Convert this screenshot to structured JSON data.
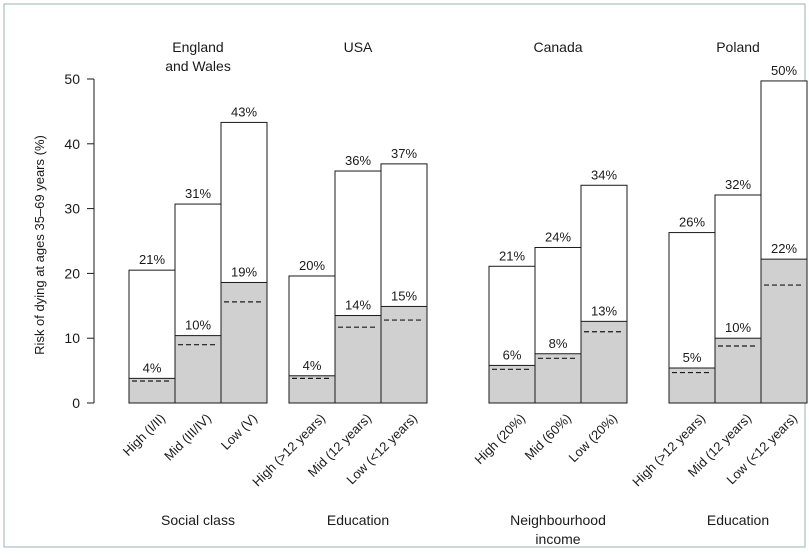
{
  "chart_data": {
    "type": "bar",
    "ylabel": "Risk of dying at ages 35–69 years (%)",
    "ylim": [
      0,
      50
    ],
    "yticks": [
      0,
      10,
      20,
      30,
      40,
      50
    ],
    "grid": false,
    "colors": {
      "frame": "#99b3b3",
      "outer_bar": "#ffffff",
      "inner_bar": "#d0d0d0",
      "stroke": "#1a1a1a"
    },
    "groups": [
      {
        "title_lines": [
          "England",
          "and Wales"
        ],
        "footer_lines": [
          "Social class"
        ],
        "bars": [
          {
            "category": "High (I/II)",
            "total": 20.5,
            "total_label": "21%",
            "inner": 3.8,
            "inner_label": "4%",
            "dashed": 3.4
          },
          {
            "category": "Mid (III/IV)",
            "total": 30.7,
            "total_label": "31%",
            "inner": 10.4,
            "inner_label": "10%",
            "dashed": 9.0
          },
          {
            "category": "Low (V)",
            "total": 43.3,
            "total_label": "43%",
            "inner": 18.6,
            "inner_label": "19%",
            "dashed": 15.6
          }
        ]
      },
      {
        "title_lines": [
          "USA"
        ],
        "footer_lines": [
          "Education"
        ],
        "bars": [
          {
            "category": "High (>12 years)",
            "total": 19.6,
            "total_label": "20%",
            "inner": 4.2,
            "inner_label": "4%",
            "dashed": 3.8
          },
          {
            "category": "Mid (12 years)",
            "total": 35.8,
            "total_label": "36%",
            "inner": 13.5,
            "inner_label": "14%",
            "dashed": 11.7
          },
          {
            "category": "Low (<12 years)",
            "total": 36.9,
            "total_label": "37%",
            "inner": 14.9,
            "inner_label": "15%",
            "dashed": 12.8
          }
        ]
      },
      {
        "title_lines": [
          "Canada"
        ],
        "footer_lines": [
          "Neighbourhood",
          "income"
        ],
        "bars": [
          {
            "category": "High (20%)",
            "total": 21.1,
            "total_label": "21%",
            "inner": 5.8,
            "inner_label": "6%",
            "dashed": 5.2
          },
          {
            "category": "Mid (60%)",
            "total": 24.0,
            "total_label": "24%",
            "inner": 7.6,
            "inner_label": "8%",
            "dashed": 6.9
          },
          {
            "category": "Low (20%)",
            "total": 33.6,
            "total_label": "34%",
            "inner": 12.6,
            "inner_label": "13%",
            "dashed": 11.0
          }
        ]
      },
      {
        "title_lines": [
          "Poland"
        ],
        "footer_lines": [
          "Education"
        ],
        "bars": [
          {
            "category": "High (>12 years)",
            "total": 26.3,
            "total_label": "26%",
            "inner": 5.4,
            "inner_label": "5%",
            "dashed": 4.7
          },
          {
            "category": "Mid (12 years)",
            "total": 32.1,
            "total_label": "32%",
            "inner": 10.0,
            "inner_label": "10%",
            "dashed": 8.8
          },
          {
            "category": "Low (<12 years)",
            "total": 49.7,
            "total_label": "50%",
            "inner": 22.2,
            "inner_label": "22%",
            "dashed": 18.2
          }
        ]
      }
    ]
  }
}
